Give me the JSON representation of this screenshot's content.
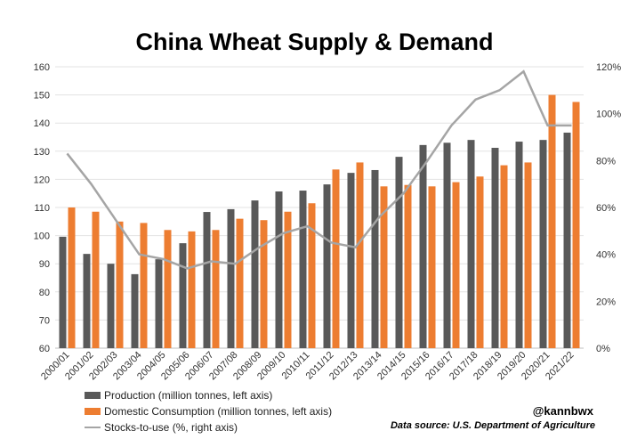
{
  "chart_data": {
    "type": "bar+line",
    "title": "China Wheat Supply & Demand",
    "categories": [
      "2000/01",
      "2001/02",
      "2002/03",
      "2003/04",
      "2004/05",
      "2005/06",
      "2006/07",
      "2007/08",
      "2008/09",
      "2009/10",
      "2010/11",
      "2011/12",
      "2012/13",
      "2013/14",
      "2014/15",
      "2015/16",
      "2016/17",
      "2017/18",
      "2018/19",
      "2019/20",
      "2020/21",
      "2021/22"
    ],
    "series": [
      {
        "name": "Production (million tonnes, left axis)",
        "type": "bar",
        "axis": "left",
        "color": "#595959",
        "values": [
          99.6,
          93.5,
          90,
          86.3,
          91.6,
          97.3,
          108.4,
          109.4,
          112.5,
          115.7,
          116,
          118.2,
          122.3,
          123.3,
          128,
          132.2,
          133,
          134,
          131.2,
          133.4,
          134,
          136.6
        ]
      },
      {
        "name": "Domestic Consumption (million tonnes, left axis)",
        "type": "bar",
        "axis": "left",
        "color": "#ed7d31",
        "values": [
          110,
          108.5,
          105,
          104.5,
          102,
          101.5,
          102,
          106,
          105.5,
          108.5,
          111.5,
          123.5,
          126,
          117.5,
          118,
          117.5,
          119,
          121,
          125,
          126,
          150,
          147.5
        ]
      },
      {
        "name": "Stocks-to-use (%, right axis)",
        "type": "line",
        "axis": "right",
        "color": "#a5a5a5",
        "values": [
          83,
          70,
          55,
          40,
          38,
          34,
          37,
          36,
          43,
          49,
          52,
          45,
          43,
          56,
          66,
          80,
          95,
          106,
          110,
          118,
          95,
          95
        ]
      }
    ],
    "left_axis": {
      "ylim": [
        60,
        160
      ],
      "ticks": [
        "60",
        "70",
        "80",
        "90",
        "100",
        "110",
        "120",
        "130",
        "140",
        "150",
        "160"
      ]
    },
    "right_axis": {
      "ylim": [
        0,
        120
      ],
      "ticks": [
        "0%",
        "20%",
        "40%",
        "60%",
        "80%",
        "100%",
        "120%"
      ]
    },
    "grid": true,
    "legend_placement": "bottom-left"
  },
  "handle": "@kannbwx",
  "source": "Data source: U.S. Department of Agriculture"
}
